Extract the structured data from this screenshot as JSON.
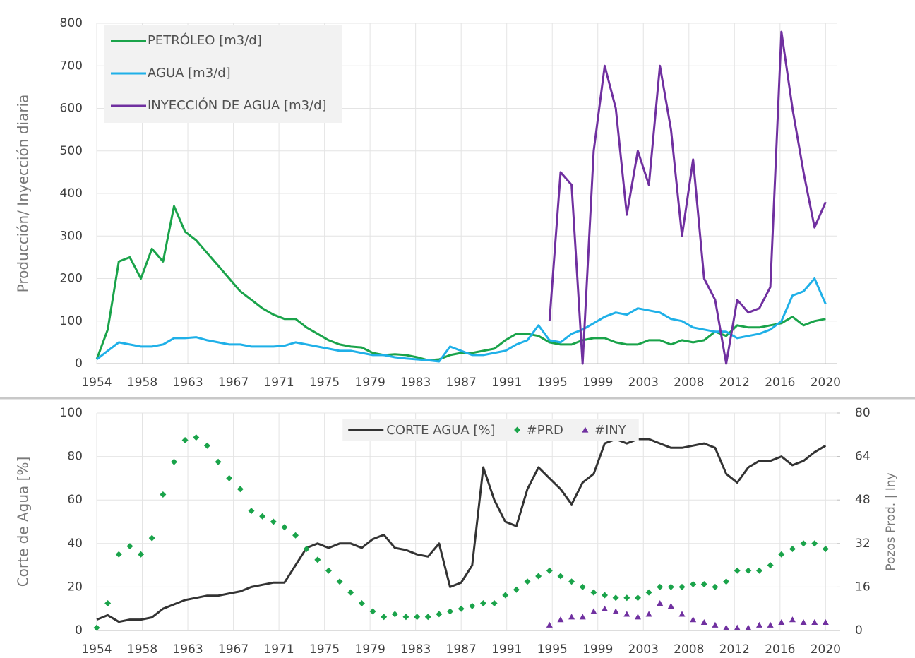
{
  "chart_data": [
    {
      "type": "line",
      "y_label": "Producción/ Inyección diaria",
      "legend": "upper left",
      "grid": true,
      "xlim": [
        1954,
        2021
      ],
      "xticks": [
        {
          "value": 1954,
          "label": "1954"
        },
        {
          "value": 1958.125,
          "label": "1958"
        },
        {
          "value": 1962.25,
          "label": "1963"
        },
        {
          "value": 1966.375,
          "label": "1967"
        },
        {
          "value": 1970.5,
          "label": "1971"
        },
        {
          "value": 1974.625,
          "label": "1975"
        },
        {
          "value": 1978.75,
          "label": "1979"
        },
        {
          "value": 1982.875,
          "label": "1983"
        },
        {
          "value": 1987,
          "label": "1987"
        },
        {
          "value": 1991.125,
          "label": "1991"
        },
        {
          "value": 1995.25,
          "label": "1995"
        },
        {
          "value": 1999.375,
          "label": "1999"
        },
        {
          "value": 2003.5,
          "label": "2003"
        },
        {
          "value": 2007.625,
          "label": "2008"
        },
        {
          "value": 2011.75,
          "label": "2012"
        },
        {
          "value": 2015.875,
          "label": "2016"
        },
        {
          "value": 2020,
          "label": "2020"
        }
      ],
      "ylim": [
        0,
        800
      ],
      "yticks": [
        0,
        100,
        200,
        300,
        400,
        500,
        600,
        700,
        800
      ],
      "x": [
        1954,
        1955,
        1956,
        1957,
        1958,
        1959,
        1960,
        1961,
        1962,
        1963,
        1964,
        1965,
        1966,
        1967,
        1968,
        1969,
        1970,
        1971,
        1972,
        1973,
        1974,
        1975,
        1976,
        1977,
        1978,
        1979,
        1980,
        1981,
        1982,
        1983,
        1984,
        1985,
        1986,
        1987,
        1988,
        1989,
        1990,
        1991,
        1992,
        1993,
        1994,
        1995,
        1996,
        1997,
        1998,
        1999,
        2000,
        2001,
        2002,
        2003,
        2004,
        2005,
        2006,
        2007,
        2008,
        2009,
        2010,
        2011,
        2012,
        2013,
        2014,
        2015,
        2016,
        2017,
        2018,
        2019,
        2020
      ],
      "series": [
        {
          "name": "PETRÓLEO [m3/d]",
          "color": "#1aa34a",
          "type": "line",
          "values": [
            10,
            80,
            240,
            250,
            200,
            270,
            240,
            370,
            310,
            290,
            260,
            230,
            200,
            170,
            150,
            130,
            115,
            105,
            105,
            85,
            70,
            55,
            45,
            40,
            38,
            25,
            20,
            22,
            20,
            15,
            8,
            10,
            20,
            25,
            25,
            30,
            35,
            55,
            70,
            70,
            65,
            50,
            45,
            45,
            55,
            60,
            60,
            50,
            45,
            45,
            55,
            55,
            45,
            55,
            50,
            55,
            75,
            65,
            90,
            85,
            85,
            90,
            95,
            110,
            90,
            100,
            105
          ]
        },
        {
          "name": "AGUA [m3/d]",
          "color": "#1fb0e8",
          "type": "line",
          "values": [
            10,
            30,
            50,
            45,
            40,
            40,
            45,
            60,
            60,
            62,
            55,
            50,
            45,
            45,
            40,
            40,
            40,
            42,
            50,
            45,
            40,
            35,
            30,
            30,
            25,
            20,
            20,
            15,
            12,
            10,
            8,
            5,
            40,
            30,
            20,
            20,
            25,
            30,
            45,
            55,
            90,
            55,
            50,
            70,
            80,
            95,
            110,
            120,
            115,
            130,
            125,
            120,
            105,
            100,
            85,
            80,
            75,
            75,
            60,
            65,
            70,
            80,
            100,
            160,
            170,
            200,
            140
          ]
        },
        {
          "name": "INYECCIÓN DE AGUA [m3/d]",
          "color": "#7030a0",
          "type": "line",
          "values": [
            null,
            null,
            null,
            null,
            null,
            null,
            null,
            null,
            null,
            null,
            null,
            null,
            null,
            null,
            null,
            null,
            null,
            null,
            null,
            null,
            null,
            null,
            null,
            null,
            null,
            null,
            null,
            null,
            null,
            null,
            null,
            null,
            null,
            null,
            null,
            null,
            null,
            null,
            null,
            null,
            null,
            100,
            450,
            420,
            0,
            500,
            700,
            600,
            350,
            500,
            420,
            700,
            550,
            300,
            480,
            200,
            150,
            0,
            150,
            120,
            130,
            180,
            780,
            600,
            450,
            320,
            380
          ]
        }
      ]
    },
    {
      "type": "combo",
      "y_label": "Corte de Agua [%]",
      "y2_label": "Pozos Prod. | Iny",
      "legend": "upper center",
      "grid": true,
      "xlim": [
        1954,
        2021
      ],
      "xticks": [
        {
          "value": 1954,
          "label": "1954"
        },
        {
          "value": 1958.125,
          "label": "1958"
        },
        {
          "value": 1962.25,
          "label": "1963"
        },
        {
          "value": 1966.375,
          "label": "1967"
        },
        {
          "value": 1970.5,
          "label": "1971"
        },
        {
          "value": 1974.625,
          "label": "1975"
        },
        {
          "value": 1978.75,
          "label": "1979"
        },
        {
          "value": 1982.875,
          "label": "1983"
        },
        {
          "value": 1987,
          "label": "1987"
        },
        {
          "value": 1991.125,
          "label": "1991"
        },
        {
          "value": 1995.25,
          "label": "1995"
        },
        {
          "value": 1999.375,
          "label": "1999"
        },
        {
          "value": 2003.5,
          "label": "2003"
        },
        {
          "value": 2007.625,
          "label": "2008"
        },
        {
          "value": 2011.75,
          "label": "2012"
        },
        {
          "value": 2015.875,
          "label": "2016"
        },
        {
          "value": 2020,
          "label": "2020"
        }
      ],
      "ylim": [
        0,
        100
      ],
      "yticks": [
        0,
        20,
        40,
        60,
        80,
        100
      ],
      "y2lim": [
        0,
        80
      ],
      "y2ticks": [
        0,
        16,
        32,
        48,
        64,
        80
      ],
      "x": [
        1954,
        1955,
        1956,
        1957,
        1958,
        1959,
        1960,
        1961,
        1962,
        1963,
        1964,
        1965,
        1966,
        1967,
        1968,
        1969,
        1970,
        1971,
        1972,
        1973,
        1974,
        1975,
        1976,
        1977,
        1978,
        1979,
        1980,
        1981,
        1982,
        1983,
        1984,
        1985,
        1986,
        1987,
        1988,
        1989,
        1990,
        1991,
        1992,
        1993,
        1994,
        1995,
        1996,
        1997,
        1998,
        1999,
        2000,
        2001,
        2002,
        2003,
        2004,
        2005,
        2006,
        2007,
        2008,
        2009,
        2010,
        2011,
        2012,
        2013,
        2014,
        2015,
        2016,
        2017,
        2018,
        2019,
        2020
      ],
      "series": [
        {
          "name": "CORTE AGUA [%]",
          "color": "#333333",
          "type": "line",
          "values": [
            5,
            7,
            4,
            5,
            5,
            6,
            10,
            12,
            14,
            15,
            16,
            16,
            17,
            18,
            20,
            21,
            22,
            22,
            30,
            38,
            40,
            38,
            40,
            40,
            38,
            42,
            44,
            38,
            37,
            35,
            34,
            40,
            20,
            22,
            30,
            75,
            60,
            50,
            48,
            65,
            75,
            70,
            65,
            58,
            68,
            72,
            86,
            88,
            86,
            88,
            88,
            86,
            84,
            84,
            85,
            86,
            84,
            72,
            68,
            75,
            78,
            78,
            80,
            76,
            78,
            82,
            85
          ]
        },
        {
          "name": "#PRD",
          "color": "#1aa34a",
          "type": "scatter",
          "marker": "diamond",
          "axis": "y2",
          "values": [
            1,
            10,
            28,
            31,
            28,
            34,
            50,
            62,
            70,
            71,
            68,
            62,
            56,
            52,
            44,
            42,
            40,
            38,
            35,
            30,
            26,
            22,
            18,
            14,
            10,
            7,
            5,
            6,
            5,
            5,
            5,
            6,
            7,
            8,
            9,
            10,
            10,
            13,
            15,
            18,
            20,
            22,
            20,
            18,
            16,
            14,
            13,
            12,
            12,
            12,
            14,
            16,
            16,
            16,
            17,
            17,
            16,
            18,
            22,
            22,
            22,
            24,
            28,
            30,
            32,
            32,
            30
          ]
        },
        {
          "name": "#INY",
          "color": "#7030a0",
          "type": "scatter",
          "marker": "triangle",
          "axis": "y2",
          "values": [
            null,
            null,
            null,
            null,
            null,
            null,
            null,
            null,
            null,
            null,
            null,
            null,
            null,
            null,
            null,
            null,
            null,
            null,
            null,
            null,
            null,
            null,
            null,
            null,
            null,
            null,
            null,
            null,
            null,
            null,
            null,
            null,
            null,
            null,
            null,
            null,
            null,
            null,
            null,
            null,
            null,
            2,
            4,
            5,
            5,
            7,
            8,
            7,
            6,
            5,
            6,
            10,
            9,
            6,
            4,
            3,
            2,
            1,
            1,
            1,
            2,
            2,
            3,
            4,
            3,
            3,
            3
          ]
        }
      ]
    }
  ]
}
